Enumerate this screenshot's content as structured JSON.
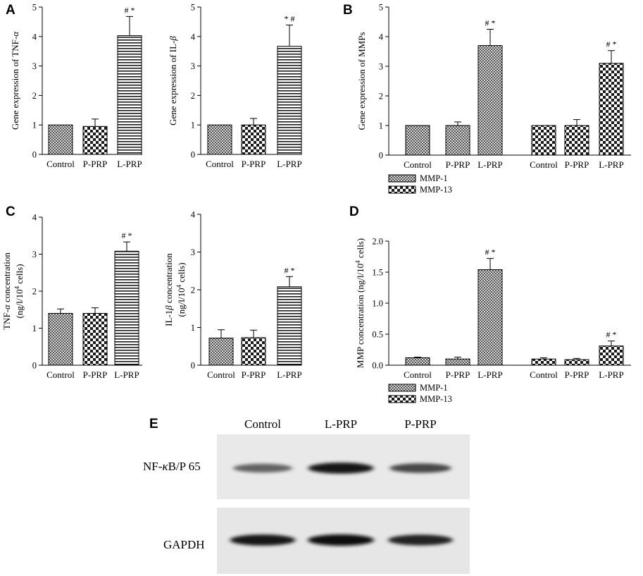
{
  "panels": {
    "A": "A",
    "B": "B",
    "C": "C",
    "D": "D",
    "E": "E"
  },
  "chart_data": [
    {
      "id": "A1",
      "type": "bar",
      "panel": "A",
      "ylabel_main": "Gene expression of TNF-",
      "ylabel_greek": "α",
      "ylim": [
        0,
        5
      ],
      "yticks": [
        "0",
        "1",
        "2",
        "3",
        "4",
        "5"
      ],
      "categories": [
        "Control",
        "P-PRP",
        "L-PRP"
      ],
      "values": [
        1.0,
        0.95,
        4.03
      ],
      "errors": [
        0,
        0.25,
        0.65
      ],
      "patterns": [
        "fine",
        "checker",
        "hstripe"
      ],
      "annotations": [
        "",
        "",
        "#*"
      ]
    },
    {
      "id": "A2",
      "type": "bar",
      "panel": "A",
      "ylabel_main": "Gene expression of IL-",
      "ylabel_greek": "β",
      "ylim": [
        0,
        5
      ],
      "yticks": [
        "0",
        "1",
        "2",
        "3",
        "4",
        "5"
      ],
      "categories": [
        "Control",
        "P-PRP",
        "L-PRP"
      ],
      "values": [
        1.0,
        1.0,
        3.67
      ],
      "errors": [
        0,
        0.22,
        0.72
      ],
      "patterns": [
        "fine",
        "checker",
        "hstripe"
      ],
      "annotations": [
        "",
        "",
        "*#"
      ]
    },
    {
      "id": "B",
      "type": "bar",
      "panel": "B",
      "ylabel_main": "Gene expression of MMPs",
      "ylabel_greek": "",
      "ylim": [
        0,
        5
      ],
      "yticks": [
        "0",
        "1",
        "2",
        "3",
        "4",
        "5"
      ],
      "categories": [
        "Control",
        "P-PRP",
        "L-PRP"
      ],
      "series": [
        {
          "name": "MMP-1",
          "pattern": "fine",
          "values": [
            1.0,
            1.0,
            3.7
          ],
          "errors": [
            0,
            0.12,
            0.55
          ],
          "annotations": [
            "",
            "",
            "#*"
          ]
        },
        {
          "name": "MMP-13",
          "pattern": "checker",
          "values": [
            1.0,
            1.0,
            3.1
          ],
          "errors": [
            0,
            0.2,
            0.43
          ],
          "annotations": [
            "",
            "",
            "#*"
          ]
        }
      ]
    },
    {
      "id": "C1",
      "type": "bar",
      "panel": "C",
      "ylabel_main": "TNF-",
      "ylabel_greek": "α",
      "ylabel_rest": " concentration",
      "ylabel2": "(ng/l/10",
      "ylabel2_sup": "4",
      "ylabel2_rest": " cells)",
      "ylim": [
        0,
        4
      ],
      "yticks": [
        "0",
        "1",
        "2",
        "3",
        "4"
      ],
      "categories": [
        "Control",
        "P-PRP",
        "L-PRP"
      ],
      "values": [
        1.4,
        1.4,
        3.08
      ],
      "errors": [
        0.12,
        0.15,
        0.25
      ],
      "patterns": [
        "fine",
        "checker",
        "hstripe"
      ],
      "annotations": [
        "",
        "",
        "#*"
      ]
    },
    {
      "id": "C2",
      "type": "bar",
      "panel": "C",
      "ylabel_main": "IL-1",
      "ylabel_greek": "β",
      "ylabel_rest": " concentration",
      "ylabel2": "(ng/l/10",
      "ylabel2_sup": "4",
      "ylabel2_rest": " cells)",
      "ylim": [
        0,
        4
      ],
      "yticks": [
        "0",
        "1",
        "2",
        "3",
        "4"
      ],
      "categories": [
        "Control",
        "P-PRP",
        "L-PRP"
      ],
      "values": [
        0.72,
        0.73,
        2.08
      ],
      "errors": [
        0.22,
        0.2,
        0.27
      ],
      "patterns": [
        "fine",
        "checker",
        "hstripe"
      ],
      "annotations": [
        "",
        "",
        "#*"
      ]
    },
    {
      "id": "D",
      "type": "bar",
      "panel": "D",
      "ylabel_main": "MMP concentration (ng/l/10",
      "ylabel_greek": "",
      "ylabel_sup": "4",
      "ylabel_rest": " cells)",
      "ylim": [
        0,
        2.0
      ],
      "yticks": [
        "0.0",
        "0.5",
        "1.0",
        "1.5",
        "2.0"
      ],
      "categories": [
        "Control",
        "P-PRP",
        "L-PRP"
      ],
      "series": [
        {
          "name": "MMP-1",
          "pattern": "fine",
          "values": [
            0.12,
            0.1,
            1.54
          ],
          "errors": [
            0.01,
            0.03,
            0.18
          ],
          "annotations": [
            "",
            "",
            "#*"
          ]
        },
        {
          "name": "MMP-13",
          "pattern": "checker",
          "values": [
            0.1,
            0.09,
            0.31
          ],
          "errors": [
            0.02,
            0.02,
            0.08
          ],
          "annotations": [
            "",
            "",
            "#*"
          ]
        }
      ]
    }
  ],
  "blot": {
    "lanes": [
      "Control",
      "L-PRP",
      "P-PRP"
    ],
    "rows": [
      {
        "label": "NF-",
        "greek": "κ",
        "label_rest": "B/P 65",
        "intensity": [
          0.55,
          0.95,
          0.7
        ]
      },
      {
        "label": "GAPDH",
        "greek": "",
        "label_rest": "",
        "intensity": [
          0.95,
          1.0,
          0.9
        ]
      }
    ]
  }
}
